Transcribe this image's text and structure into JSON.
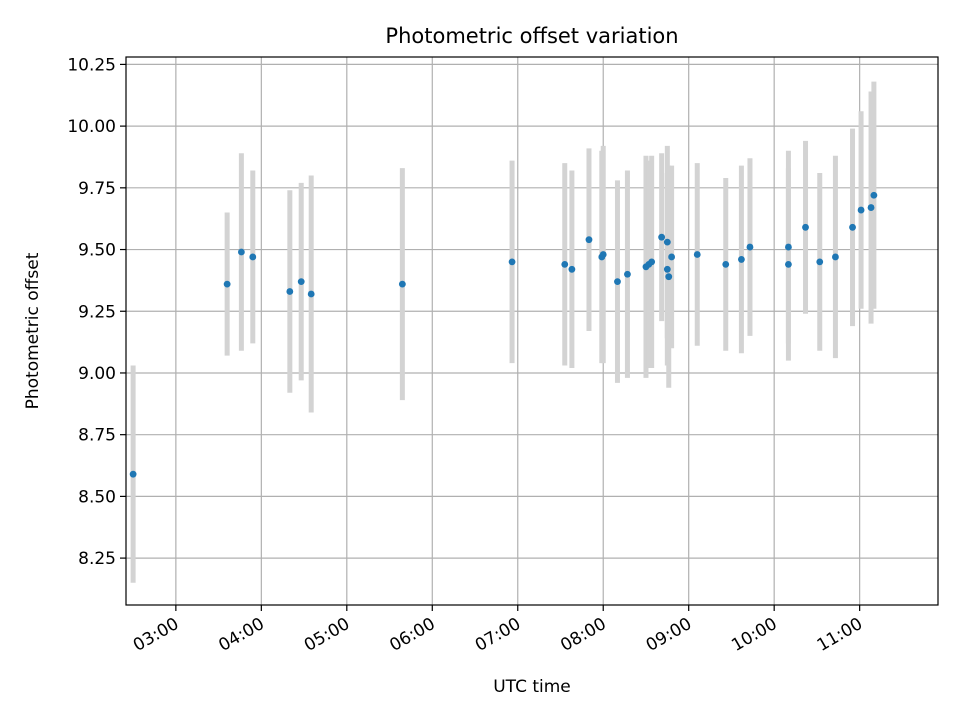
{
  "chart_data": {
    "type": "scatter",
    "title": "Photometric offset variation",
    "xlabel": "UTC time",
    "ylabel": "Photometric offset",
    "x_tick_labels": [
      "03:00",
      "04:00",
      "05:00",
      "06:00",
      "07:00",
      "08:00",
      "09:00",
      "10:00",
      "11:00"
    ],
    "y_tick_labels": [
      "8.25",
      "8.50",
      "8.75",
      "9.00",
      "9.25",
      "9.50",
      "9.75",
      "10.00",
      "10.25"
    ],
    "xlim": [
      "02:25",
      "11:55"
    ],
    "ylim": [
      8.06,
      10.28
    ],
    "grid": true,
    "point_color": "#1f77b4",
    "errorbar_color": "#d3d3d3",
    "points": [
      {
        "x": "02:30",
        "y": 8.59,
        "yerr": 0.44
      },
      {
        "x": "03:36",
        "y": 9.36,
        "yerr": 0.29
      },
      {
        "x": "03:46",
        "y": 9.49,
        "yerr": 0.4
      },
      {
        "x": "03:54",
        "y": 9.47,
        "yerr": 0.35
      },
      {
        "x": "04:20",
        "y": 9.33,
        "yerr": 0.41
      },
      {
        "x": "04:28",
        "y": 9.37,
        "yerr": 0.4
      },
      {
        "x": "04:35",
        "y": 9.32,
        "yerr": 0.48
      },
      {
        "x": "05:39",
        "y": 9.36,
        "yerr": 0.47
      },
      {
        "x": "06:56",
        "y": 9.45,
        "yerr": 0.41
      },
      {
        "x": "07:33",
        "y": 9.44,
        "yerr": 0.41
      },
      {
        "x": "07:38",
        "y": 9.42,
        "yerr": 0.4
      },
      {
        "x": "07:50",
        "y": 9.54,
        "yerr": 0.37
      },
      {
        "x": "07:59",
        "y": 9.47,
        "yerr": 0.43
      },
      {
        "x": "08:00",
        "y": 9.48,
        "yerr": 0.44
      },
      {
        "x": "08:10",
        "y": 9.37,
        "yerr": 0.41
      },
      {
        "x": "08:17",
        "y": 9.4,
        "yerr": 0.42
      },
      {
        "x": "08:30",
        "y": 9.43,
        "yerr": 0.45
      },
      {
        "x": "08:32",
        "y": 9.44,
        "yerr": 0.42
      },
      {
        "x": "08:34",
        "y": 9.45,
        "yerr": 0.43
      },
      {
        "x": "08:41",
        "y": 9.55,
        "yerr": 0.34
      },
      {
        "x": "08:45",
        "y": 9.53,
        "yerr": 0.39
      },
      {
        "x": "08:45",
        "y": 9.42,
        "yerr": 0.39
      },
      {
        "x": "08:46",
        "y": 9.39,
        "yerr": 0.45
      },
      {
        "x": "08:48",
        "y": 9.47,
        "yerr": 0.37
      },
      {
        "x": "09:06",
        "y": 9.48,
        "yerr": 0.37
      },
      {
        "x": "09:26",
        "y": 9.44,
        "yerr": 0.35
      },
      {
        "x": "09:37",
        "y": 9.46,
        "yerr": 0.38
      },
      {
        "x": "09:43",
        "y": 9.51,
        "yerr": 0.36
      },
      {
        "x": "10:10",
        "y": 9.44,
        "yerr": 0.39
      },
      {
        "x": "10:10",
        "y": 9.51,
        "yerr": 0.39
      },
      {
        "x": "10:22",
        "y": 9.59,
        "yerr": 0.35
      },
      {
        "x": "10:32",
        "y": 9.45,
        "yerr": 0.36
      },
      {
        "x": "10:43",
        "y": 9.47,
        "yerr": 0.41
      },
      {
        "x": "10:55",
        "y": 9.59,
        "yerr": 0.4
      },
      {
        "x": "11:01",
        "y": 9.66,
        "yerr": 0.4
      },
      {
        "x": "11:08",
        "y": 9.67,
        "yerr": 0.47
      },
      {
        "x": "11:10",
        "y": 9.72,
        "yerr": 0.46
      }
    ]
  }
}
